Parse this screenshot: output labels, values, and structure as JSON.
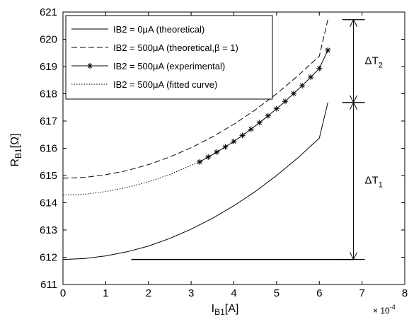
{
  "chart_data": {
    "type": "line",
    "xlabel": "I",
    "xlabel_sub": "B1",
    "xlabel_unit": "[A]",
    "ylabel": "R",
    "ylabel_sub": "B1",
    "ylabel_unit": "[Ω]",
    "x_multiplier": "× 10",
    "x_multiplier_exp": "-4",
    "xlim": [
      0,
      0.0008
    ],
    "ylim": [
      611,
      621
    ],
    "x_ticks": [
      0,
      0.0001,
      0.0002,
      0.0003,
      0.0004,
      0.0005,
      0.0006,
      0.0007,
      0.0008
    ],
    "x_tick_labels": [
      "0",
      "1",
      "2",
      "3",
      "4",
      "5",
      "6",
      "7",
      "8"
    ],
    "y_ticks": [
      611,
      612,
      613,
      614,
      615,
      616,
      617,
      618,
      619,
      620,
      621
    ],
    "y_tick_labels": [
      "611",
      "612",
      "613",
      "614",
      "615",
      "616",
      "617",
      "618",
      "619",
      "620",
      "621"
    ],
    "grid": false,
    "legend_position": "top-left",
    "series": [
      {
        "name": "IB2 = 0μA (theoretical)",
        "style": "solid",
        "marker": "none",
        "x": [
          0,
          5e-05,
          0.0001,
          0.00015,
          0.0002,
          0.00025,
          0.0003,
          0.00035,
          0.0004,
          0.00045,
          0.0005,
          0.00055,
          0.0006,
          0.00062
        ],
        "y": [
          611.92,
          611.95,
          612.05,
          612.2,
          612.41,
          612.69,
          613.03,
          613.43,
          613.89,
          614.41,
          615.0,
          615.65,
          616.37,
          617.68
        ]
      },
      {
        "name": "IB2 = 500μA (theoretical,β = 1)",
        "style": "dashed",
        "marker": "none",
        "x": [
          0,
          5e-05,
          0.0001,
          0.00015,
          0.0002,
          0.00025,
          0.0003,
          0.00035,
          0.0004,
          0.00045,
          0.0005,
          0.00055,
          0.0006,
          0.00062
        ],
        "y": [
          614.9,
          614.93,
          615.03,
          615.18,
          615.4,
          615.68,
          616.02,
          616.42,
          616.88,
          617.41,
          618.0,
          618.66,
          619.38,
          620.72
        ]
      },
      {
        "name": "IB2 = 500μA (experimental)",
        "style": "solid",
        "marker": "asterisk",
        "x": [
          0.00032,
          0.00034,
          0.00036,
          0.00038,
          0.0004,
          0.00042,
          0.00044,
          0.00046,
          0.00048,
          0.0005,
          0.00052,
          0.00054,
          0.00056,
          0.00058,
          0.0006,
          0.00062
        ],
        "y": [
          615.5,
          615.68,
          615.86,
          616.05,
          616.25,
          616.47,
          616.7,
          616.94,
          617.19,
          617.45,
          617.72,
          618.01,
          618.3,
          618.61,
          618.93,
          619.6
        ]
      },
      {
        "name": "IB2 = 500μA (fitted curve)",
        "style": "dotted",
        "marker": "none",
        "x": [
          0,
          5e-05,
          0.0001,
          0.00015,
          0.0002,
          0.00025,
          0.0003,
          0.00032
        ],
        "y": [
          614.28,
          614.31,
          614.41,
          614.56,
          614.77,
          615.04,
          615.37,
          615.5
        ]
      }
    ],
    "annotations": [
      {
        "label": "ΔT",
        "sub": "2",
        "from_y": 617.68,
        "to_y": 620.72
      },
      {
        "label": "ΔT",
        "sub": "1",
        "from_y": 611.92,
        "to_y": 617.68
      }
    ],
    "annotation_x": 0.00068,
    "reference_line": {
      "x_from": 0.00016,
      "x_to": 0.00068,
      "y": 611.92
    },
    "colors": {
      "line": "#000000",
      "background": "#ffffff"
    }
  }
}
